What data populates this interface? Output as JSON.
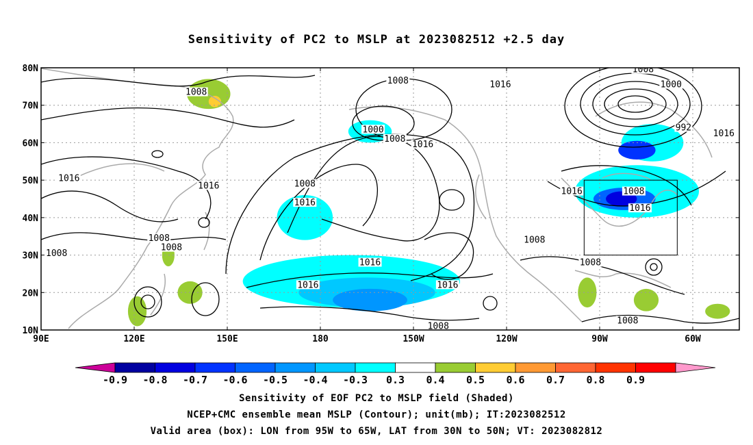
{
  "title": "Sensitivity of PC2 to MSLP at 2023082512 +2.5 day",
  "map": {
    "lat_labels": [
      "80N",
      "70N",
      "60N",
      "50N",
      "40N",
      "30N",
      "20N",
      "10N"
    ],
    "lat_values": [
      80,
      70,
      60,
      50,
      40,
      30,
      20,
      10
    ],
    "lon_labels": [
      "90E",
      "120E",
      "150E",
      "180",
      "150W",
      "120W",
      "90W",
      "60W"
    ],
    "lon_values": [
      90,
      120,
      150,
      180,
      210,
      240,
      270,
      300
    ],
    "extent": {
      "lon_min": 90,
      "lon_max": 315,
      "lat_min": 10,
      "lat_max": 80
    },
    "valid_box": {
      "lon_min": 265,
      "lon_max": 295,
      "lat_min": 30,
      "lat_max": 50
    },
    "box_color": "#000000",
    "contour_labels": [
      {
        "text": "1008",
        "lon": 140,
        "lat": 73.5
      },
      {
        "text": "1008",
        "lon": 205,
        "lat": 76.5
      },
      {
        "text": "1016",
        "lon": 238,
        "lat": 75.5
      },
      {
        "text": "1008",
        "lon": 284,
        "lat": 79.5
      },
      {
        "text": "1000",
        "lon": 293,
        "lat": 75.5
      },
      {
        "text": "992",
        "lon": 297,
        "lat": 64
      },
      {
        "text": "1000",
        "lon": 197,
        "lat": 63.5
      },
      {
        "text": "1008",
        "lon": 204,
        "lat": 61
      },
      {
        "text": "1016",
        "lon": 213,
        "lat": 59.5
      },
      {
        "text": "1016",
        "lon": 310,
        "lat": 62.5
      },
      {
        "text": "1016",
        "lon": 99,
        "lat": 50.5
      },
      {
        "text": "1016",
        "lon": 144,
        "lat": 48.5
      },
      {
        "text": "1008",
        "lon": 175,
        "lat": 49
      },
      {
        "text": "1016",
        "lon": 175,
        "lat": 44
      },
      {
        "text": "1016",
        "lon": 261,
        "lat": 47
      },
      {
        "text": "1008",
        "lon": 281,
        "lat": 47
      },
      {
        "text": "1016",
        "lon": 283,
        "lat": 42.5
      },
      {
        "text": "1008",
        "lon": 128,
        "lat": 34.5
      },
      {
        "text": "1008",
        "lon": 132,
        "lat": 32
      },
      {
        "text": "1008",
        "lon": 95,
        "lat": 30.5
      },
      {
        "text": "1008",
        "lon": 249,
        "lat": 34
      },
      {
        "text": "1016",
        "lon": 196,
        "lat": 28
      },
      {
        "text": "1008",
        "lon": 267,
        "lat": 28
      },
      {
        "text": "1016",
        "lon": 176,
        "lat": 22
      },
      {
        "text": "1016",
        "lon": 221,
        "lat": 22
      },
      {
        "text": "1008",
        "lon": 218,
        "lat": 11
      },
      {
        "text": "1008",
        "lon": 279,
        "lat": 12.5
      }
    ],
    "shading": [
      {
        "level": -0.3,
        "color": "#00ffff",
        "lon": 190,
        "lat": 23,
        "rx": 35,
        "ry": 7
      },
      {
        "level": -0.3,
        "color": "#00ffff",
        "lon": 175,
        "lat": 40,
        "rx": 9,
        "ry": 6
      },
      {
        "level": -0.3,
        "color": "#00ffff",
        "lon": 282,
        "lat": 47,
        "rx": 20,
        "ry": 7
      },
      {
        "level": -0.3,
        "color": "#00ffff",
        "lon": 287,
        "lat": 60,
        "rx": 10,
        "ry": 5
      },
      {
        "level": -0.3,
        "color": "#00ffff",
        "lon": 196,
        "lat": 63,
        "rx": 7,
        "ry": 3
      },
      {
        "level": -0.4,
        "color": "#00c8ff",
        "lon": 195,
        "lat": 20,
        "rx": 22,
        "ry": 4
      },
      {
        "level": -0.5,
        "color": "#0096ff",
        "lon": 196,
        "lat": 18,
        "rx": 12,
        "ry": 3
      },
      {
        "level": -0.6,
        "color": "#0064ff",
        "lon": 278,
        "lat": 45,
        "rx": 10,
        "ry": 3
      },
      {
        "level": -0.7,
        "color": "#0032ff",
        "lon": 282,
        "lat": 58,
        "rx": 6,
        "ry": 2.5
      },
      {
        "level": -0.8,
        "color": "#0000e0",
        "lon": 277,
        "lat": 45,
        "rx": 5,
        "ry": 2
      },
      {
        "level": 0.3,
        "color": "#99cc33",
        "lon": 144,
        "lat": 73,
        "rx": 7,
        "ry": 4
      },
      {
        "level": 0.3,
        "color": "#99cc33",
        "lon": 131,
        "lat": 30,
        "rx": 2,
        "ry": 3
      },
      {
        "level": 0.3,
        "color": "#99cc33",
        "lon": 138,
        "lat": 20,
        "rx": 4,
        "ry": 3
      },
      {
        "level": 0.3,
        "color": "#99cc33",
        "lon": 121,
        "lat": 15,
        "rx": 3,
        "ry": 4
      },
      {
        "level": 0.3,
        "color": "#99cc33",
        "lon": 266,
        "lat": 20,
        "rx": 3,
        "ry": 4
      },
      {
        "level": 0.3,
        "color": "#99cc33",
        "lon": 285,
        "lat": 18,
        "rx": 4,
        "ry": 3
      },
      {
        "level": 0.3,
        "color": "#99cc33",
        "lon": 308,
        "lat": 15,
        "rx": 4,
        "ry": 2
      },
      {
        "level": 0.4,
        "color": "#ffcc33",
        "lon": 146,
        "lat": 71,
        "rx": 2,
        "ry": 1.5
      }
    ]
  },
  "colorbar": {
    "levels": [
      "-0.9",
      "-0.8",
      "-0.7",
      "-0.6",
      "-0.5",
      "-0.4",
      "-0.3",
      "0.3",
      "0.4",
      "0.5",
      "0.6",
      "0.7",
      "0.8",
      "0.9"
    ],
    "colors": [
      "#0000a0",
      "#0000e0",
      "#0032ff",
      "#0064ff",
      "#0096ff",
      "#00c8ff",
      "#00ffff",
      "#ffffff",
      "#99cc33",
      "#ffcc33",
      "#ff9933",
      "#ff6633",
      "#ff3300",
      "#ff0000"
    ],
    "under_color": "#cc0099",
    "over_color": "#ff99cc"
  },
  "captions": [
    "Sensitivity of EOF PC2 to MSLP field (Shaded)",
    "NCEP+CMC ensemble mean MSLP (Contour); unit(mb); IT:2023082512",
    "Valid area (box): LON from 95W to 65W, LAT from 30N to 50N; VT: 2023082812"
  ]
}
